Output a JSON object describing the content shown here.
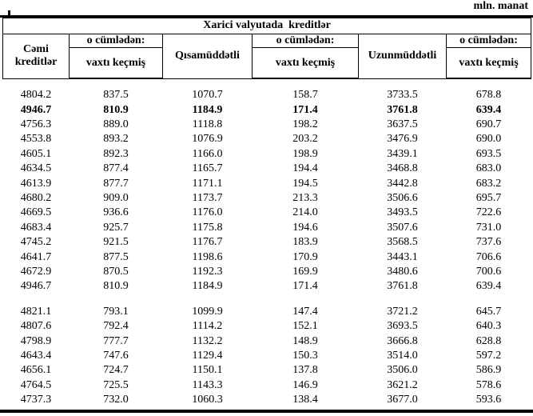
{
  "unit_label": "mln. manat",
  "table": {
    "group_header": "Xarici valyutada  kreditlər",
    "columns": [
      {
        "title": "Cəmi kreditlər"
      },
      {
        "subtitle": "o cümlədən:",
        "title": "vaxtı keçmiş"
      },
      {
        "title": "Qısamüddətli"
      },
      {
        "subtitle": "o cümlədən:",
        "title": "vaxtı keçmiş"
      },
      {
        "title": "Uzunmüddətli"
      },
      {
        "subtitle": "o cümlədən:",
        "title": "vaxtı keçmiş"
      }
    ],
    "blocks": [
      {
        "rows": [
          {
            "values": [
              "4804.2",
              "837.5",
              "1070.7",
              "158.7",
              "3733.5",
              "678.8"
            ],
            "bold": false
          },
          {
            "values": [
              "4946.7",
              "810.9",
              "1184.9",
              "171.4",
              "3761.8",
              "639.4"
            ],
            "bold": true
          },
          {
            "values": [
              "4756.3",
              "889.0",
              "1118.8",
              "198.2",
              "3637.5",
              "690.7"
            ],
            "bold": false
          },
          {
            "values": [
              "4553.8",
              "893.2",
              "1076.9",
              "203.2",
              "3476.9",
              "690.0"
            ],
            "bold": false
          },
          {
            "values": [
              "4605.1",
              "892.3",
              "1166.0",
              "198.9",
              "3439.1",
              "693.5"
            ],
            "bold": false
          },
          {
            "values": [
              "4634.5",
              "877.4",
              "1165.7",
              "194.4",
              "3468.8",
              "683.0"
            ],
            "bold": false
          },
          {
            "values": [
              "4613.9",
              "877.7",
              "1171.1",
              "194.5",
              "3442.8",
              "683.2"
            ],
            "bold": false
          },
          {
            "values": [
              "4680.2",
              "909.0",
              "1173.7",
              "213.3",
              "3506.6",
              "695.7"
            ],
            "bold": false
          },
          {
            "values": [
              "4669.5",
              "936.6",
              "1176.0",
              "214.0",
              "3493.5",
              "722.6"
            ],
            "bold": false
          },
          {
            "values": [
              "4683.4",
              "925.7",
              "1175.8",
              "194.6",
              "3507.6",
              "731.0"
            ],
            "bold": false
          },
          {
            "values": [
              "4745.2",
              "921.5",
              "1176.7",
              "183.9",
              "3568.5",
              "737.6"
            ],
            "bold": false
          },
          {
            "values": [
              "4641.7",
              "877.5",
              "1198.6",
              "170.9",
              "3443.1",
              "706.6"
            ],
            "bold": false
          },
          {
            "values": [
              "4672.9",
              "870.5",
              "1192.3",
              "169.9",
              "3480.6",
              "700.6"
            ],
            "bold": false
          },
          {
            "values": [
              "4946.7",
              "810.9",
              "1184.9",
              "171.4",
              "3761.8",
              "639.4"
            ],
            "bold": false
          }
        ]
      },
      {
        "rows": [
          {
            "values": [
              "4821.1",
              "793.1",
              "1099.9",
              "147.4",
              "3721.2",
              "645.7"
            ],
            "bold": false
          },
          {
            "values": [
              "4807.6",
              "792.4",
              "1114.2",
              "152.1",
              "3693.5",
              "640.3"
            ],
            "bold": false
          },
          {
            "values": [
              "4798.9",
              "777.7",
              "1132.2",
              "148.9",
              "3666.8",
              "628.8"
            ],
            "bold": false
          },
          {
            "values": [
              "4643.4",
              "747.6",
              "1129.4",
              "150.3",
              "3514.0",
              "597.2"
            ],
            "bold": false
          },
          {
            "values": [
              "4656.1",
              "724.7",
              "1150.1",
              "137.8",
              "3506.0",
              "586.9"
            ],
            "bold": false
          },
          {
            "values": [
              "4764.5",
              "725.5",
              "1143.3",
              "146.9",
              "3621.2",
              "578.6"
            ],
            "bold": false
          },
          {
            "values": [
              "4737.3",
              "732.0",
              "1060.3",
              "138.4",
              "3677.0",
              "593.6"
            ],
            "bold": false
          }
        ]
      }
    ]
  }
}
